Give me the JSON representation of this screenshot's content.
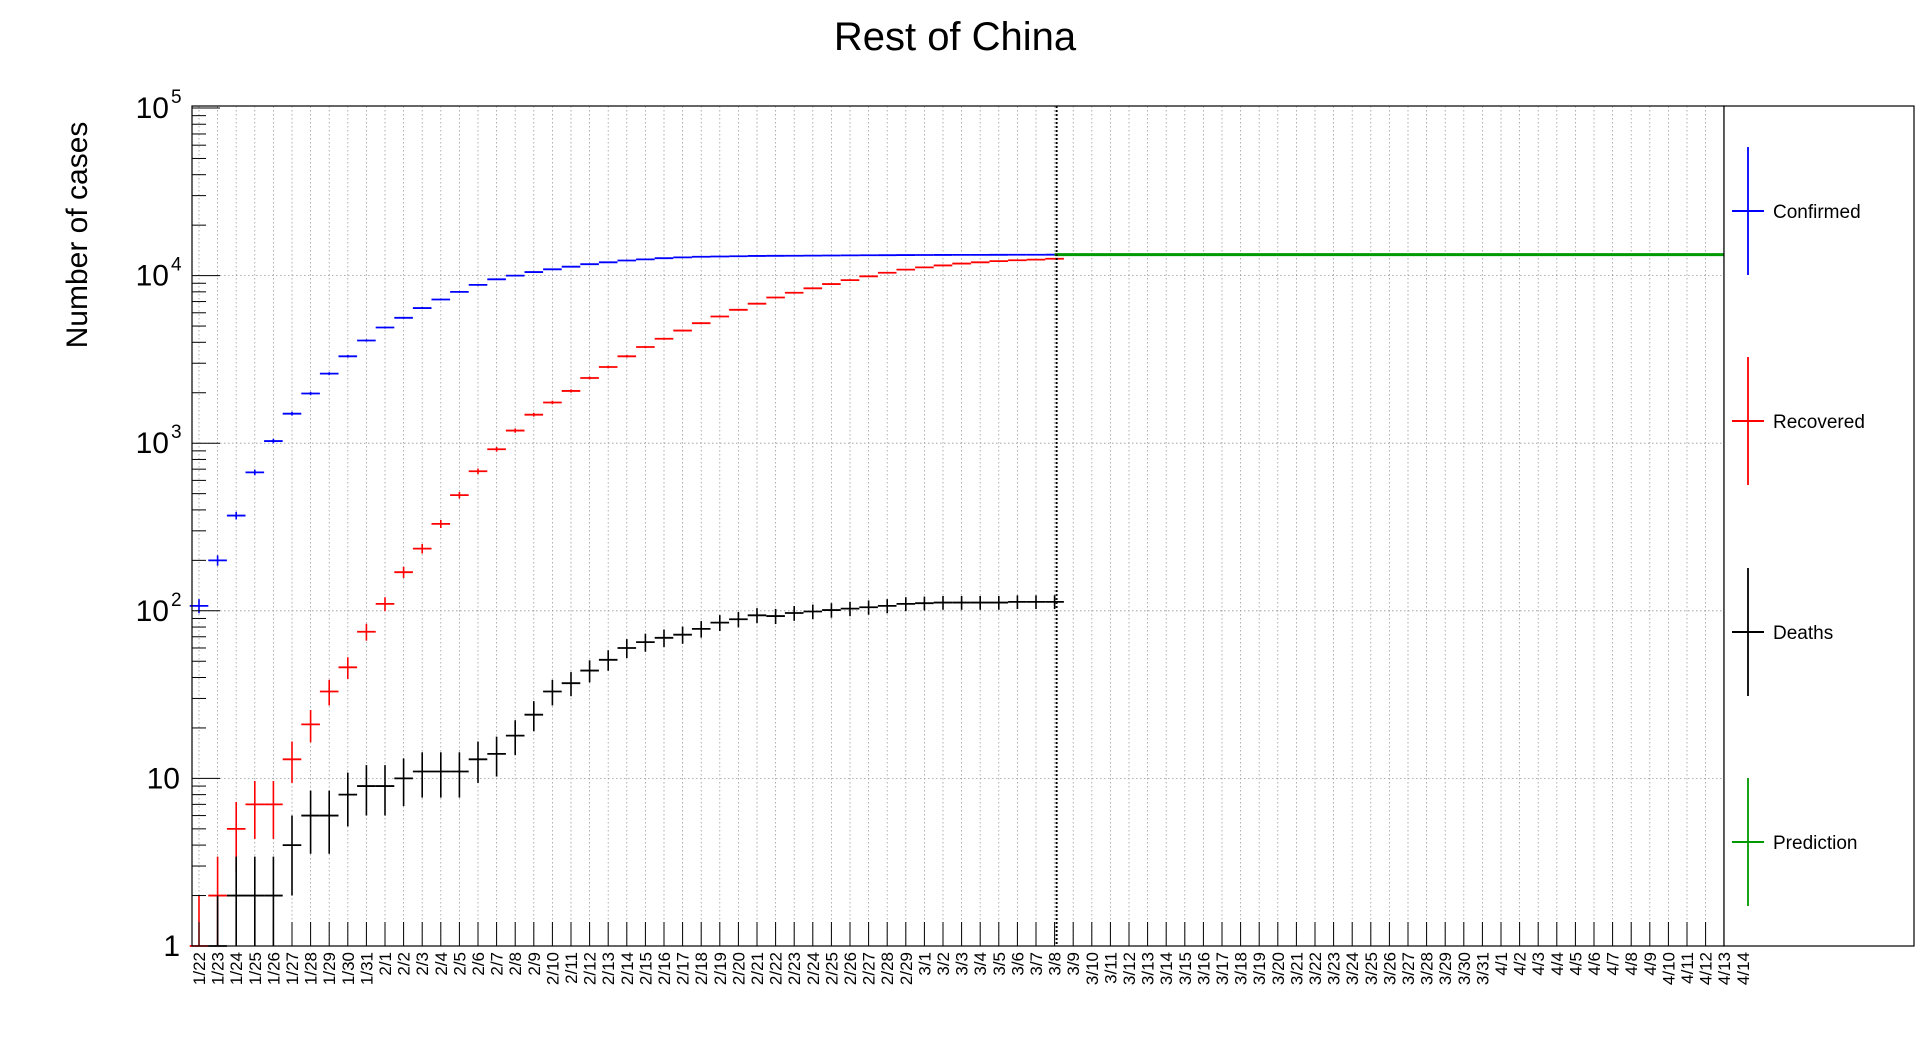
{
  "chart_data": {
    "type": "scatter",
    "title": "Rest of China",
    "xlabel": "",
    "ylabel": "Number of cases",
    "yscale": "log",
    "ylim": [
      1,
      100000
    ],
    "grid": true,
    "legend_placement": "right",
    "categories": [
      "1/22",
      "1/23",
      "1/24",
      "1/25",
      "1/26",
      "1/27",
      "1/28",
      "1/29",
      "1/30",
      "1/31",
      "2/1",
      "2/2",
      "2/3",
      "2/4",
      "2/5",
      "2/6",
      "2/7",
      "2/8",
      "2/9",
      "2/10",
      "2/11",
      "2/12",
      "2/13",
      "2/14",
      "2/15",
      "2/16",
      "2/17",
      "2/18",
      "2/19",
      "2/20",
      "2/21",
      "2/22",
      "2/23",
      "2/24",
      "2/25",
      "2/26",
      "2/27",
      "2/28",
      "2/29",
      "3/1",
      "3/2",
      "3/3",
      "3/4",
      "3/5",
      "3/6",
      "3/7",
      "3/8",
      "3/9",
      "3/10",
      "3/11",
      "3/12",
      "3/13",
      "3/14",
      "3/15",
      "3/16",
      "3/17",
      "3/18",
      "3/19",
      "3/20",
      "3/21",
      "3/22",
      "3/23",
      "3/24",
      "3/25",
      "3/26",
      "3/27",
      "3/28",
      "3/29",
      "3/30",
      "3/31",
      "4/1",
      "4/2",
      "4/3",
      "4/4",
      "4/5",
      "4/6",
      "4/7",
      "4/8",
      "4/9",
      "4/10",
      "4/11",
      "4/12",
      "4/13",
      "4/14"
    ],
    "series": [
      {
        "name": "Confirmed",
        "color": "#0000ff",
        "values": [
          107,
          200,
          370,
          670,
          1030,
          1500,
          1980,
          2600,
          3300,
          4100,
          4900,
          5600,
          6400,
          7200,
          8000,
          8800,
          9500,
          10000,
          10500,
          10900,
          11300,
          11700,
          12000,
          12300,
          12500,
          12700,
          12850,
          12950,
          13000,
          13050,
          13100,
          13120,
          13140,
          13160,
          13180,
          13200,
          13220,
          13240,
          13260,
          13270,
          13280,
          13290,
          13300,
          13310,
          13315,
          13320,
          13325
        ]
      },
      {
        "name": "Recovered",
        "color": "#ff0000",
        "values": [
          1,
          2,
          5,
          7,
          7,
          13,
          21,
          33,
          46,
          75,
          110,
          170,
          235,
          330,
          490,
          680,
          920,
          1190,
          1480,
          1750,
          2050,
          2450,
          2850,
          3300,
          3750,
          4200,
          4700,
          5200,
          5700,
          6250,
          6800,
          7400,
          7900,
          8400,
          8900,
          9400,
          9900,
          10400,
          10850,
          11200,
          11500,
          11800,
          12000,
          12200,
          12350,
          12450,
          12600
        ]
      },
      {
        "name": "Deaths",
        "color": "#000000",
        "values": [
          0,
          1,
          2,
          2,
          2,
          4,
          6,
          6,
          8,
          9,
          9,
          10,
          11,
          11,
          11,
          13,
          14,
          18,
          24,
          33,
          37,
          44,
          51,
          60,
          65,
          69,
          72,
          78,
          85,
          89,
          94,
          93,
          97,
          99,
          101,
          103,
          105,
          107,
          110,
          111,
          112,
          112,
          112,
          112,
          113,
          113,
          113
        ]
      },
      {
        "name": "Prediction",
        "color": "#009900",
        "start": "3/8",
        "value": 13330
      }
    ],
    "marker_date": "3/8"
  }
}
